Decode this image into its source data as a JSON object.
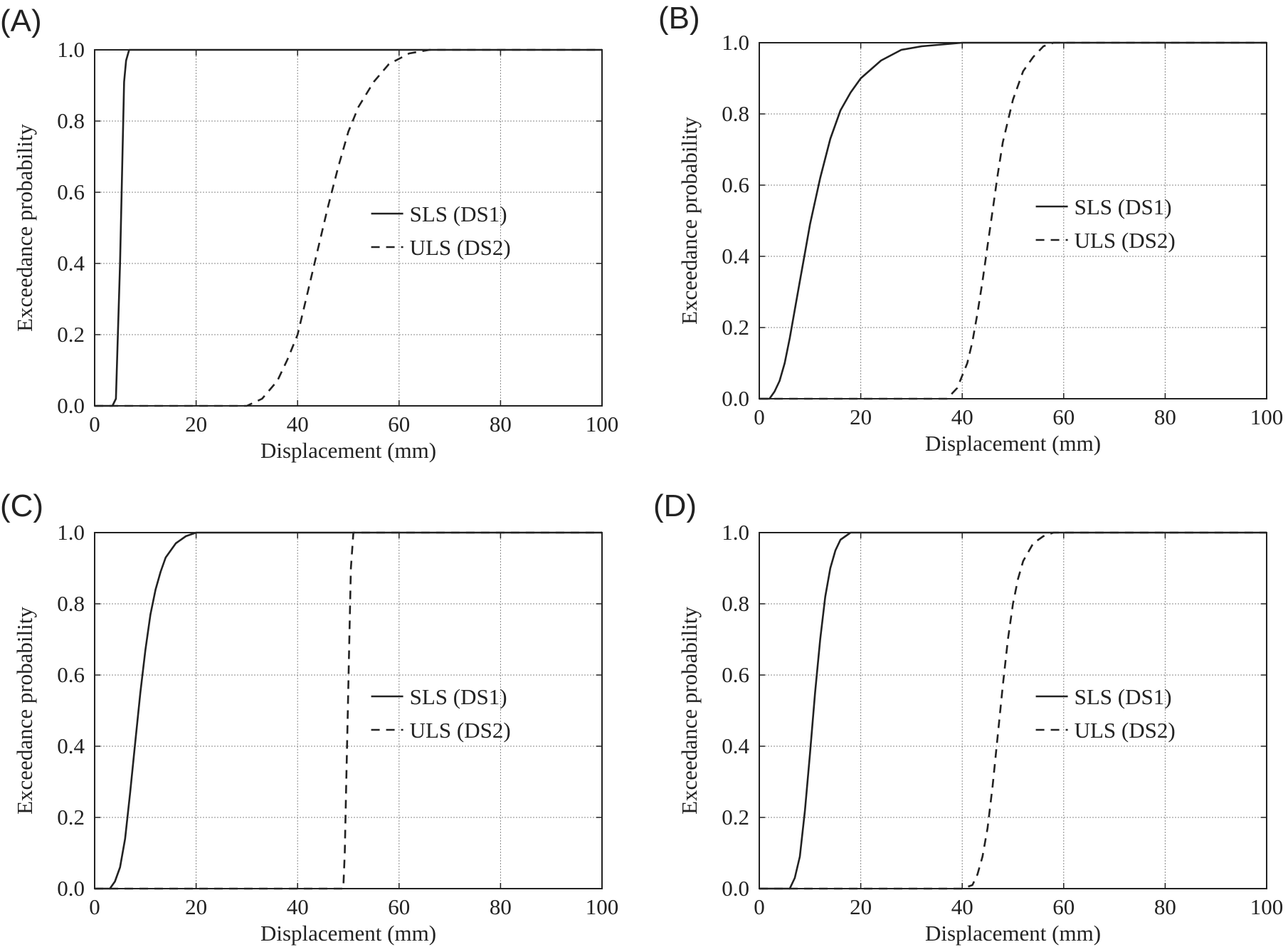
{
  "chart_data": [
    {
      "panel": "(A)",
      "type": "line",
      "xlabel": "Displacement (mm)",
      "ylabel": "Exceedance probability",
      "xlim": [
        0,
        100
      ],
      "ylim": [
        0,
        1
      ],
      "xticks": [
        0,
        20,
        40,
        60,
        80,
        100
      ],
      "xtick_labels": [
        "0",
        "20",
        "40",
        "60",
        "80",
        "100"
      ],
      "yticks": [
        0,
        0.2,
        0.4,
        0.6,
        0.8,
        1.0
      ],
      "ytick_labels": [
        "0.0",
        "0.2",
        "0.4",
        "0.6",
        "0.8",
        "1.0"
      ],
      "grid": true,
      "legend_position": "right-middle",
      "series": [
        {
          "name": "SLS (DS1)",
          "style": "solid",
          "x": [
            0,
            3.5,
            4.2,
            5.0,
            5.8,
            6.2,
            6.8,
            7.2,
            100
          ],
          "y": [
            0,
            0.0,
            0.02,
            0.4,
            0.91,
            0.97,
            1.0,
            1.0,
            1.0
          ]
        },
        {
          "name": "ULS (DS2)",
          "style": "dashed",
          "x": [
            0,
            30,
            33,
            36,
            38,
            40,
            42,
            44,
            46,
            48,
            50,
            52,
            55,
            58,
            62,
            66,
            70,
            100
          ],
          "y": [
            0,
            0.0,
            0.02,
            0.07,
            0.13,
            0.2,
            0.32,
            0.44,
            0.56,
            0.67,
            0.77,
            0.84,
            0.91,
            0.96,
            0.99,
            1.0,
            1.0,
            1.0
          ]
        }
      ]
    },
    {
      "panel": "(B)",
      "type": "line",
      "xlabel": "Displacement (mm)",
      "ylabel": "Exceedance probability",
      "xlim": [
        0,
        100
      ],
      "ylim": [
        0,
        1
      ],
      "xticks": [
        0,
        20,
        40,
        60,
        80,
        100
      ],
      "xtick_labels": [
        "0",
        "20",
        "40",
        "60",
        "80",
        "100"
      ],
      "yticks": [
        0,
        0.2,
        0.4,
        0.6,
        0.8,
        1.0
      ],
      "ytick_labels": [
        "0.0",
        "0.2",
        "0.4",
        "0.6",
        "0.8",
        "1.0"
      ],
      "grid": true,
      "legend_position": "right-middle",
      "series": [
        {
          "name": "SLS (DS1)",
          "style": "solid",
          "x": [
            0,
            2,
            3,
            4,
            5,
            6,
            7,
            8,
            9,
            10,
            12,
            14,
            16,
            18,
            20,
            24,
            28,
            32,
            40,
            50,
            100
          ],
          "y": [
            0,
            0.0,
            0.02,
            0.05,
            0.1,
            0.17,
            0.25,
            0.33,
            0.41,
            0.49,
            0.62,
            0.73,
            0.81,
            0.86,
            0.9,
            0.95,
            0.98,
            0.99,
            1.0,
            1.0,
            1.0
          ]
        },
        {
          "name": "ULS (DS2)",
          "style": "dashed",
          "x": [
            0,
            37,
            39,
            41,
            42,
            43,
            44,
            45,
            46,
            47,
            48,
            50,
            52,
            54,
            56,
            58,
            100
          ],
          "y": [
            0,
            0.0,
            0.03,
            0.1,
            0.16,
            0.24,
            0.33,
            0.43,
            0.53,
            0.63,
            0.72,
            0.84,
            0.92,
            0.96,
            0.99,
            1.0,
            1.0
          ]
        }
      ]
    },
    {
      "panel": "(C)",
      "type": "line",
      "xlabel": "Displacement (mm)",
      "ylabel": "Exceedance probability",
      "xlim": [
        0,
        100
      ],
      "ylim": [
        0,
        1
      ],
      "xticks": [
        0,
        20,
        40,
        60,
        80,
        100
      ],
      "xtick_labels": [
        "0",
        "20",
        "40",
        "60",
        "80",
        "100"
      ],
      "yticks": [
        0,
        0.2,
        0.4,
        0.6,
        0.8,
        1.0
      ],
      "ytick_labels": [
        "0.0",
        "0.2",
        "0.4",
        "0.6",
        "0.8",
        "1.0"
      ],
      "grid": true,
      "legend_position": "right-middle",
      "series": [
        {
          "name": "SLS (DS1)",
          "style": "solid",
          "x": [
            0,
            3,
            4,
            5,
            6,
            7,
            8,
            9,
            10,
            11,
            12,
            13,
            14,
            16,
            18,
            20,
            24,
            30,
            100
          ],
          "y": [
            0,
            0.0,
            0.02,
            0.06,
            0.14,
            0.27,
            0.41,
            0.55,
            0.67,
            0.77,
            0.84,
            0.89,
            0.93,
            0.97,
            0.99,
            1.0,
            1.0,
            1.0,
            1.0
          ]
        },
        {
          "name": "ULS (DS2)",
          "style": "dashed",
          "x": [
            0,
            49,
            49.3,
            49.6,
            49.9,
            50.2,
            50.5,
            51,
            100
          ],
          "y": [
            0,
            0.0,
            0.1,
            0.3,
            0.5,
            0.7,
            0.9,
            1.0,
            1.0
          ]
        }
      ]
    },
    {
      "panel": "(D)",
      "type": "line",
      "xlabel": "Displacement (mm)",
      "ylabel": "Exceedance probability",
      "xlim": [
        0,
        100
      ],
      "ylim": [
        0,
        1
      ],
      "xticks": [
        0,
        20,
        40,
        60,
        80,
        100
      ],
      "xtick_labels": [
        "0",
        "20",
        "40",
        "60",
        "80",
        "100"
      ],
      "yticks": [
        0,
        0.2,
        0.4,
        0.6,
        0.8,
        1.0
      ],
      "ytick_labels": [
        "0.0",
        "0.2",
        "0.4",
        "0.6",
        "0.8",
        "1.0"
      ],
      "grid": true,
      "legend_position": "right-middle",
      "series": [
        {
          "name": "SLS (DS1)",
          "style": "solid",
          "x": [
            0,
            6,
            7,
            8,
            9,
            10,
            11,
            12,
            13,
            14,
            15,
            16,
            17,
            18,
            20,
            24,
            100
          ],
          "y": [
            0,
            0.0,
            0.03,
            0.09,
            0.22,
            0.38,
            0.55,
            0.7,
            0.82,
            0.9,
            0.95,
            0.98,
            0.99,
            1.0,
            1.0,
            1.0,
            1.0
          ]
        },
        {
          "name": "ULS (DS2)",
          "style": "dashed",
          "x": [
            0,
            40,
            42,
            43,
            44,
            45,
            46,
            47,
            48,
            49,
            50,
            51,
            52,
            54,
            56,
            58,
            100
          ],
          "y": [
            0,
            0.0,
            0.01,
            0.04,
            0.09,
            0.17,
            0.29,
            0.43,
            0.57,
            0.7,
            0.8,
            0.87,
            0.92,
            0.97,
            0.99,
            1.0,
            1.0
          ]
        }
      ]
    }
  ]
}
